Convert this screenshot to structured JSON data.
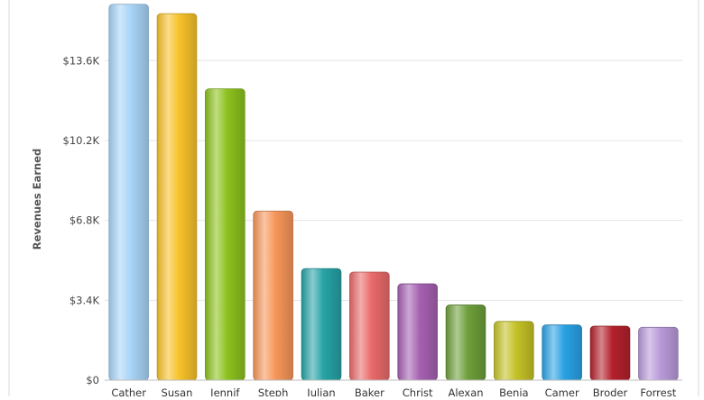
{
  "chart_data": {
    "type": "bar",
    "title": "",
    "xlabel": "",
    "ylabel": "Revenues Earned",
    "ylim": [
      0,
      16320
    ],
    "grid": true,
    "legend": "none",
    "y_ticks": [
      0,
      3400,
      6800,
      10200,
      13600
    ],
    "y_tick_labels": [
      "$0",
      "$3.4K",
      "$6.8K",
      "$10.2K",
      "$13.6K"
    ],
    "categories": [
      "Cather",
      "Susan",
      "Jennif",
      "Steph",
      "Julian",
      "Baker",
      "Christ",
      "Alexan",
      "Benja",
      "Camer",
      "Broder",
      "Forrest"
    ],
    "values": [
      16000,
      15600,
      12400,
      7200,
      4750,
      4600,
      4100,
      3200,
      2500,
      2350,
      2300,
      2250
    ],
    "colors": [
      "#a8d4f7",
      "#f7c22a",
      "#8cc21e",
      "#f7965a",
      "#26a3a6",
      "#ea6a6a",
      "#a661b1",
      "#6e9f3a",
      "#c4c226",
      "#2aa2e4",
      "#b3212c",
      "#b89ad8"
    ]
  }
}
